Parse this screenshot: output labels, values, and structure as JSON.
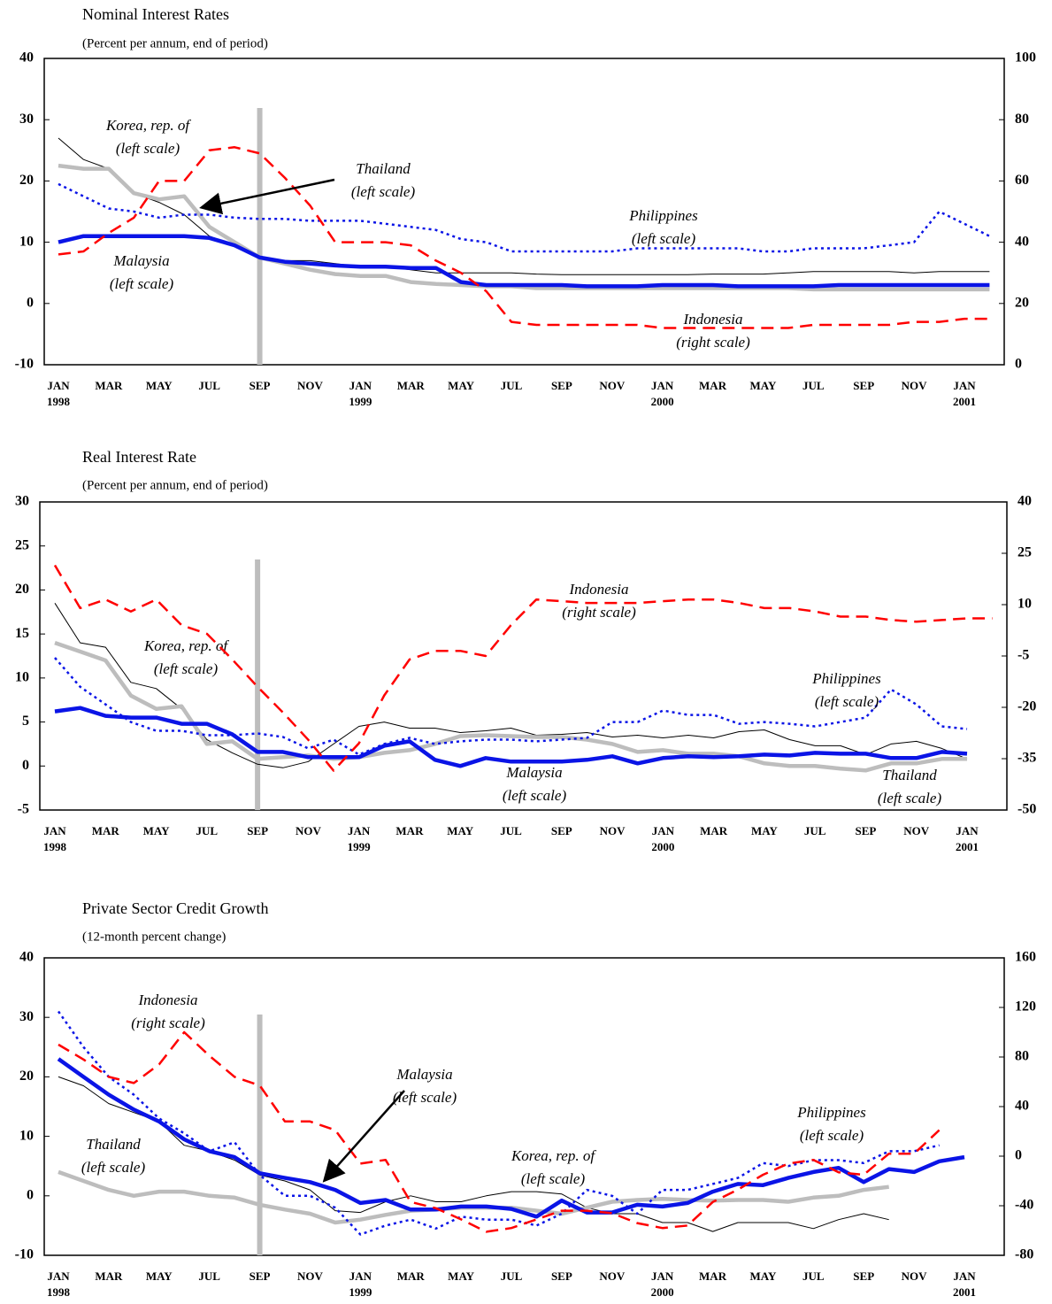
{
  "chart_data": [
    {
      "type": "line",
      "title": "Nominal Interest Rates",
      "subtitle": "(Percent per annum, end of period)",
      "categories": [
        "JAN 1998",
        null,
        "MAR",
        null,
        "MAY",
        null,
        "JUL",
        null,
        "SEP",
        null,
        "NOV",
        null,
        "JAN 1999",
        null,
        "MAR",
        null,
        "MAY",
        null,
        "JUL",
        null,
        "SEP",
        null,
        "NOV",
        null,
        "JAN 2000",
        null,
        "MAR",
        null,
        "MAY",
        null,
        "JUL",
        null,
        "SEP",
        null,
        "NOV",
        null,
        "JAN 2001",
        null
      ],
      "ylim": [
        -10,
        40
      ],
      "yticks": [
        -10,
        0,
        10,
        20,
        30,
        40
      ],
      "y2lim": [
        0,
        100
      ],
      "y2ticks": [
        0,
        20,
        40,
        60,
        80,
        100
      ],
      "series": [
        {
          "name": "Korea, rep. of",
          "note": "(left scale)",
          "color": "#000000",
          "style": "solid",
          "width": 1,
          "values": [
            27,
            23.5,
            22,
            18,
            16.5,
            14.5,
            11,
            9.5,
            7.5,
            7,
            7,
            6.5,
            6,
            6,
            5.5,
            5,
            5,
            5,
            5,
            4.8,
            4.7,
            4.7,
            4.7,
            4.7,
            4.7,
            4.7,
            4.8,
            4.8,
            4.8,
            5,
            5.2,
            5.2,
            5.2,
            5.2,
            5,
            5.2,
            5.2,
            5.2
          ]
        },
        {
          "name": "Thailand",
          "note": "(left scale)",
          "color": "#bdbdbd",
          "style": "solid",
          "width": 4.5,
          "values": [
            22.5,
            22,
            22,
            18,
            17,
            17.5,
            12.5,
            10,
            7.5,
            6.5,
            5.5,
            4.8,
            4.5,
            4.5,
            3.5,
            3.2,
            3,
            2.8,
            2.8,
            2.5,
            2.5,
            2.5,
            2.5,
            2.5,
            2.5,
            2.5,
            2.5,
            2.5,
            2.5,
            2.5,
            2.3,
            2.3,
            2.3,
            2.3,
            2.3,
            2.3,
            2.3,
            2.3
          ]
        },
        {
          "name": "Malaysia",
          "note": "(left scale)",
          "color": "#0a14e6",
          "style": "solid",
          "width": 4.5,
          "values": [
            10,
            11,
            11,
            11,
            11,
            11,
            10.7,
            9.5,
            7.5,
            6.8,
            6.5,
            6.2,
            6,
            6,
            5.8,
            5.8,
            3.5,
            3,
            3,
            3,
            3,
            2.8,
            2.8,
            2.8,
            3,
            3,
            3,
            2.8,
            2.8,
            2.8,
            2.8,
            3,
            3,
            3,
            3,
            3,
            3,
            3
          ]
        },
        {
          "name": "Philippines",
          "note": "(left scale)",
          "color": "#0a14e6",
          "style": "dotted",
          "width": 2.5,
          "values": [
            19.5,
            17.5,
            15.5,
            15,
            14,
            14.5,
            14.5,
            14,
            13.8,
            13.8,
            13.5,
            13.5,
            13.5,
            13,
            12.5,
            12,
            10.5,
            10,
            8.5,
            8.5,
            8.5,
            8.5,
            8.5,
            9,
            9,
            9,
            9,
            9,
            8.5,
            8.5,
            9,
            9,
            9,
            9.5,
            10,
            15,
            13,
            11
          ]
        },
        {
          "name": "Indonesia",
          "note": "(right scale)",
          "color": "#ff0000",
          "style": "dashed",
          "width": 2.5,
          "axis": "y2",
          "values": [
            36,
            37,
            43,
            48,
            60,
            60,
            70,
            71,
            69,
            61,
            52,
            40,
            40,
            40,
            39,
            34,
            30,
            24,
            14,
            13,
            13,
            13,
            13,
            13,
            12,
            12,
            12,
            12,
            12,
            12,
            13,
            13,
            13,
            13,
            14,
            14,
            15,
            15
          ]
        }
      ]
    },
    {
      "type": "line",
      "title": "Real Interest Rate",
      "subtitle": "(Percent per annum, end of period)",
      "categories": [
        "JAN 1998",
        null,
        "MAR",
        null,
        "MAY",
        null,
        "JUL",
        null,
        "SEP",
        null,
        "NOV",
        null,
        "JAN 1999",
        null,
        "MAR",
        null,
        "MAY",
        null,
        "JUL",
        null,
        "SEP",
        null,
        "NOV",
        null,
        "JAN 2000",
        null,
        "MAR",
        null,
        "MAY",
        null,
        "JUL",
        null,
        "SEP",
        null,
        "NOV",
        null,
        "JAN 2001",
        null
      ],
      "ylim": [
        -5,
        30
      ],
      "yticks": [
        -5,
        0,
        5,
        10,
        15,
        20,
        25,
        30
      ],
      "y2lim": [
        -50,
        40
      ],
      "y2ticks": [
        -50,
        -35,
        -20,
        -5,
        10,
        25,
        40
      ],
      "series": [
        {
          "name": "Korea, rep. of",
          "note": "(left scale)",
          "color": "#000000",
          "style": "solid",
          "width": 1,
          "values": [
            18.5,
            14,
            13.5,
            9.5,
            8.8,
            6.5,
            3,
            1.5,
            0.2,
            -0.2,
            0.5,
            2.5,
            4.5,
            5,
            4.3,
            4.3,
            3.8,
            4,
            4.3,
            3.5,
            3.6,
            3.8,
            3.3,
            3.5,
            3.2,
            3.5,
            3.2,
            3.9,
            4.1,
            3,
            2.3,
            2.3,
            1.3,
            2.5,
            2.8,
            2,
            0.8,
            null
          ]
        },
        {
          "name": "Thailand",
          "note": "(left scale)",
          "color": "#bdbdbd",
          "style": "solid",
          "width": 4.5,
          "values": [
            14,
            13,
            12,
            8,
            6.5,
            6.8,
            2.5,
            2.8,
            0.8,
            1,
            1.2,
            0.8,
            1,
            1.5,
            1.8,
            2.5,
            3.4,
            3.5,
            3.4,
            3.3,
            3.3,
            3,
            2.5,
            1.6,
            1.8,
            1.4,
            1.4,
            1.1,
            0.3,
            0,
            0,
            -0.3,
            -0.5,
            0.3,
            0.3,
            0.8,
            0.8,
            null
          ]
        },
        {
          "name": "Malaysia",
          "note": "(left scale)",
          "color": "#0a14e6",
          "style": "solid",
          "width": 4.5,
          "values": [
            6.2,
            6.6,
            5.7,
            5.5,
            5.5,
            4.8,
            4.8,
            3.6,
            1.6,
            1.6,
            1,
            1,
            1,
            2.3,
            2.8,
            0.7,
            0,
            0.9,
            0.5,
            0.5,
            0.5,
            0.7,
            1.1,
            0.3,
            0.9,
            1.1,
            1,
            1.1,
            1.3,
            1.2,
            1.5,
            1.4,
            1.4,
            0.9,
            0.9,
            1.6,
            1.4,
            null
          ]
        },
        {
          "name": "Philippines",
          "note": "(left scale)",
          "color": "#0a14e6",
          "style": "dotted",
          "width": 2.5,
          "values": [
            12.3,
            9,
            7,
            5,
            4,
            4,
            3.5,
            3.5,
            3.7,
            3.3,
            2,
            3,
            1.3,
            2.5,
            3.2,
            2.5,
            2.8,
            3,
            3,
            2.8,
            3,
            3.2,
            5,
            5,
            6.3,
            5.8,
            5.8,
            4.8,
            5,
            4.8,
            4.5,
            5,
            5.5,
            8.7,
            7,
            4.5,
            4.2,
            null
          ]
        },
        {
          "name": "Indonesia",
          "note": "(right scale)",
          "color": "#ff0000",
          "style": "dashed",
          "width": 2.5,
          "axis": "y2",
          "values": [
            21.5,
            9,
            11.5,
            8,
            11.5,
            4,
            1.5,
            -6,
            -14,
            -21.5,
            -29.5,
            -38.5,
            -30.5,
            -16.5,
            -6,
            -3.5,
            -3.5,
            -5,
            4,
            11.5,
            11,
            10.5,
            10.5,
            10.5,
            11,
            11.5,
            11.5,
            10.5,
            9,
            9,
            8,
            6.5,
            6.5,
            5.5,
            5,
            5.5,
            6,
            6
          ]
        }
      ]
    },
    {
      "type": "line",
      "title": "Private Sector Credit Growth",
      "subtitle": "(12-month percent change)",
      "categories": [
        "JAN 1998",
        null,
        "MAR",
        null,
        "MAY",
        null,
        "JUL",
        null,
        "SEP",
        null,
        "NOV",
        null,
        "JAN 1999",
        null,
        "MAR",
        null,
        "MAY",
        null,
        "JUL",
        null,
        "SEP",
        null,
        "NOV",
        null,
        "JAN 2000",
        null,
        "MAR",
        null,
        "MAY",
        null,
        "JUL",
        null,
        "SEP",
        null,
        "NOV",
        null,
        "JAN 2001",
        null
      ],
      "ylim": [
        -10,
        40
      ],
      "yticks": [
        -10,
        0,
        10,
        20,
        30,
        40
      ],
      "y2lim": [
        -80,
        160
      ],
      "y2ticks": [
        -80,
        -40,
        0,
        40,
        80,
        120,
        160
      ],
      "series": [
        {
          "name": "Korea, rep. of",
          "note": "(left scale)",
          "color": "#000000",
          "style": "solid",
          "width": 1,
          "values": [
            20,
            18.5,
            15.5,
            14,
            12.5,
            8.5,
            7.5,
            6,
            3.5,
            2.5,
            1,
            -2.5,
            -2.8,
            -1,
            0,
            -1,
            -1,
            0,
            0.7,
            0.7,
            0.3,
            -2,
            -3,
            -3,
            -4.5,
            -4.5,
            -6,
            -4.5,
            -4.5,
            -4.5,
            -5.5,
            -4,
            -3,
            -4,
            null,
            null,
            null,
            null
          ]
        },
        {
          "name": "Thailand",
          "note": "(left scale)",
          "color": "#bdbdbd",
          "style": "solid",
          "width": 4.5,
          "values": [
            4,
            2.5,
            1,
            0,
            0.7,
            0.7,
            0,
            -0.3,
            -1.5,
            -2.3,
            -3,
            -4.5,
            -4,
            -3.2,
            -2.5,
            -2.3,
            -2,
            -2,
            -2,
            -2.5,
            -3,
            -2,
            -1,
            -0.7,
            -0.5,
            -0.7,
            -0.8,
            -0.7,
            -0.7,
            -1,
            -0.3,
            0,
            1,
            1.5,
            null,
            null,
            null,
            null
          ]
        },
        {
          "name": "Malaysia",
          "note": "(left scale)",
          "color": "#0a14e6",
          "style": "solid",
          "width": 4.5,
          "values": [
            23,
            20,
            17,
            14.5,
            12.5,
            9.5,
            7.5,
            6.5,
            3.8,
            3,
            2.3,
            1,
            -1.2,
            -0.7,
            -2.3,
            -2.3,
            -1.8,
            -1.8,
            -2.2,
            -3.5,
            -0.8,
            -2.8,
            -2.8,
            -1.5,
            -1.8,
            -1.2,
            0.7,
            2,
            1.8,
            3,
            4,
            4.7,
            2.3,
            4.5,
            4,
            5.8,
            6.5,
            null
          ]
        },
        {
          "name": "Philippines",
          "note": "(left scale)",
          "color": "#0a14e6",
          "style": "dotted",
          "width": 2.5,
          "values": [
            31,
            25,
            20,
            17,
            13,
            10.5,
            7.5,
            9,
            3.5,
            0,
            0,
            -2,
            -6.5,
            -5,
            -4,
            -5.5,
            -3.5,
            -4,
            -4,
            -5,
            -3,
            1,
            0,
            -3,
            1,
            1,
            2,
            3,
            5.5,
            5,
            6,
            6,
            5.5,
            7.5,
            7.5,
            8.5,
            null,
            null
          ]
        },
        {
          "name": "Indonesia",
          "note": "(right scale)",
          "color": "#ff0000",
          "style": "dashed",
          "width": 2.5,
          "axis": "y2",
          "values": [
            90,
            78,
            64,
            59,
            74,
            100,
            81,
            64,
            57,
            28,
            28,
            21,
            -6,
            -3,
            -37,
            -42,
            -51,
            -61,
            -58,
            -51,
            -44,
            -44,
            -46,
            -54,
            -58,
            -56,
            -37,
            -27,
            -15,
            -6,
            -3,
            -13,
            -15,
            2,
            2,
            21,
            null,
            null
          ]
        }
      ]
    }
  ]
}
